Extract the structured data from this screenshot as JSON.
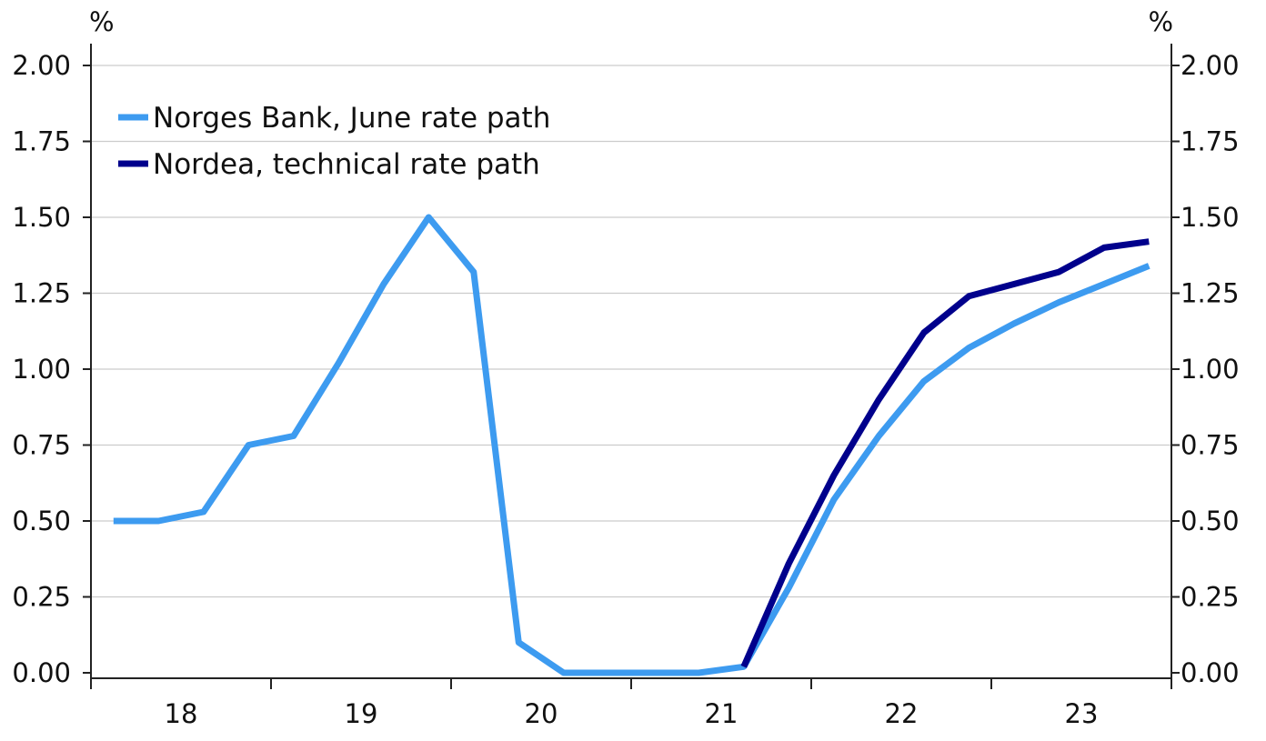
{
  "chart_data": {
    "type": "line",
    "y_unit_left": "%",
    "y_unit_right": "%",
    "ylim": [
      0,
      2.0
    ],
    "yticks": [
      "0.00",
      "0.25",
      "0.50",
      "0.75",
      "1.00",
      "1.25",
      "1.50",
      "1.75",
      "2.00"
    ],
    "ytick_values": [
      0,
      0.25,
      0.5,
      0.75,
      1.0,
      1.25,
      1.5,
      1.75,
      2.0
    ],
    "xlim": [
      2017.75,
      2023.75
    ],
    "xtick_labels": [
      "18",
      "19",
      "20",
      "21",
      "22",
      "23"
    ],
    "xtick_years": [
      2018,
      2019,
      2020,
      2021,
      2022,
      2023
    ],
    "grid": true,
    "legend_position": "top-left",
    "colors": {
      "norges": "#3d9bf0",
      "nordea": "#00008c",
      "grid": "#cccccc",
      "axis": "#222222"
    },
    "series": [
      {
        "name": "Norges Bank, June rate path",
        "color": "#3d9bf0",
        "x": [
          2017.875,
          2018.125,
          2018.375,
          2018.625,
          2018.875,
          2019.125,
          2019.375,
          2019.625,
          2019.875,
          2020.125,
          2020.375,
          2020.625,
          2020.875,
          2021.125,
          2021.375,
          2021.625,
          2021.875,
          2022.125,
          2022.375,
          2022.625,
          2022.875,
          2023.125,
          2023.375,
          2023.625
        ],
        "values": [
          0.5,
          0.5,
          0.53,
          0.75,
          0.78,
          1.02,
          1.28,
          1.5,
          1.32,
          0.1,
          0.0,
          0.0,
          0.0,
          0.0,
          0.02,
          0.28,
          0.57,
          0.78,
          0.96,
          1.07,
          1.15,
          1.22,
          1.28,
          1.34
        ]
      },
      {
        "name": "Nordea, technical rate path",
        "color": "#00008c",
        "x": [
          2021.375,
          2021.625,
          2021.875,
          2022.125,
          2022.375,
          2022.625,
          2022.875,
          2023.125,
          2023.375,
          2023.625
        ],
        "values": [
          0.02,
          0.36,
          0.65,
          0.9,
          1.12,
          1.24,
          1.28,
          1.32,
          1.4,
          1.42
        ]
      }
    ]
  }
}
